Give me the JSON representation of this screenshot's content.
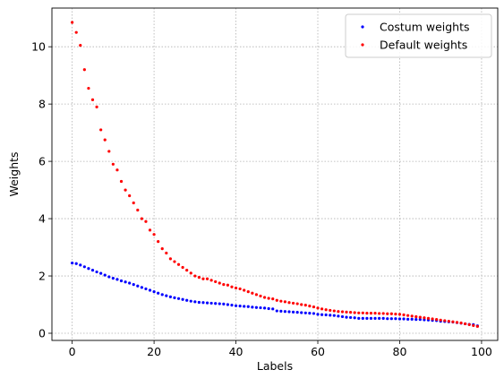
{
  "chart_data": {
    "type": "scatter",
    "xlabel": "Labels",
    "ylabel": "Weights",
    "xlim": [
      -4.95,
      103.95
    ],
    "ylim": [
      -0.25,
      11.35
    ],
    "xticks": [
      0,
      20,
      40,
      60,
      80,
      100
    ],
    "yticks": [
      0,
      2,
      4,
      6,
      8,
      10
    ],
    "grid": true,
    "legend_position": "top-right",
    "x": [
      0,
      1,
      2,
      3,
      4,
      5,
      6,
      7,
      8,
      9,
      10,
      11,
      12,
      13,
      14,
      15,
      16,
      17,
      18,
      19,
      20,
      21,
      22,
      23,
      24,
      25,
      26,
      27,
      28,
      29,
      30,
      31,
      32,
      33,
      34,
      35,
      36,
      37,
      38,
      39,
      40,
      41,
      42,
      43,
      44,
      45,
      46,
      47,
      48,
      49,
      50,
      51,
      52,
      53,
      54,
      55,
      56,
      57,
      58,
      59,
      60,
      61,
      62,
      63,
      64,
      65,
      66,
      67,
      68,
      69,
      70,
      71,
      72,
      73,
      74,
      75,
      76,
      77,
      78,
      79,
      80,
      81,
      82,
      83,
      84,
      85,
      86,
      87,
      88,
      89,
      90,
      91,
      92,
      93,
      94,
      95,
      96,
      97,
      98,
      99
    ],
    "series": [
      {
        "name": "Costum weights",
        "color": "#0000ff",
        "values": [
          2.45,
          2.43,
          2.38,
          2.32,
          2.26,
          2.2,
          2.14,
          2.09,
          2.03,
          1.97,
          1.92,
          1.88,
          1.83,
          1.79,
          1.75,
          1.7,
          1.65,
          1.6,
          1.55,
          1.5,
          1.45,
          1.4,
          1.35,
          1.31,
          1.27,
          1.24,
          1.21,
          1.18,
          1.15,
          1.12,
          1.1,
          1.08,
          1.07,
          1.06,
          1.05,
          1.04,
          1.03,
          1.02,
          1.0,
          0.98,
          0.96,
          0.95,
          0.94,
          0.93,
          0.91,
          0.9,
          0.89,
          0.88,
          0.86,
          0.85,
          0.78,
          0.77,
          0.76,
          0.75,
          0.74,
          0.73,
          0.72,
          0.71,
          0.7,
          0.69,
          0.66,
          0.65,
          0.64,
          0.63,
          0.62,
          0.6,
          0.58,
          0.56,
          0.55,
          0.54,
          0.52,
          0.52,
          0.52,
          0.52,
          0.52,
          0.52,
          0.52,
          0.51,
          0.51,
          0.51,
          0.5,
          0.5,
          0.49,
          0.49,
          0.48,
          0.48,
          0.47,
          0.46,
          0.45,
          0.44,
          0.42,
          0.41,
          0.4,
          0.39,
          0.37,
          0.35,
          0.33,
          0.31,
          0.3,
          0.26
        ]
      },
      {
        "name": "Default weights",
        "color": "#ff0000",
        "values": [
          10.85,
          10.5,
          10.05,
          9.2,
          8.55,
          8.15,
          7.9,
          7.1,
          6.75,
          6.35,
          5.9,
          5.7,
          5.3,
          5.0,
          4.8,
          4.55,
          4.3,
          4.0,
          3.9,
          3.6,
          3.45,
          3.2,
          2.95,
          2.8,
          2.6,
          2.5,
          2.4,
          2.3,
          2.2,
          2.1,
          2.0,
          1.95,
          1.9,
          1.9,
          1.85,
          1.8,
          1.75,
          1.7,
          1.68,
          1.62,
          1.58,
          1.55,
          1.5,
          1.45,
          1.4,
          1.35,
          1.3,
          1.25,
          1.22,
          1.2,
          1.15,
          1.12,
          1.1,
          1.07,
          1.05,
          1.03,
          1.0,
          0.98,
          0.95,
          0.92,
          0.88,
          0.85,
          0.82,
          0.8,
          0.78,
          0.76,
          0.75,
          0.74,
          0.73,
          0.72,
          0.71,
          0.71,
          0.7,
          0.7,
          0.7,
          0.69,
          0.69,
          0.68,
          0.68,
          0.67,
          0.66,
          0.64,
          0.62,
          0.6,
          0.58,
          0.56,
          0.54,
          0.52,
          0.5,
          0.48,
          0.46,
          0.44,
          0.42,
          0.4,
          0.38,
          0.36,
          0.33,
          0.3,
          0.27,
          0.24
        ]
      }
    ]
  }
}
